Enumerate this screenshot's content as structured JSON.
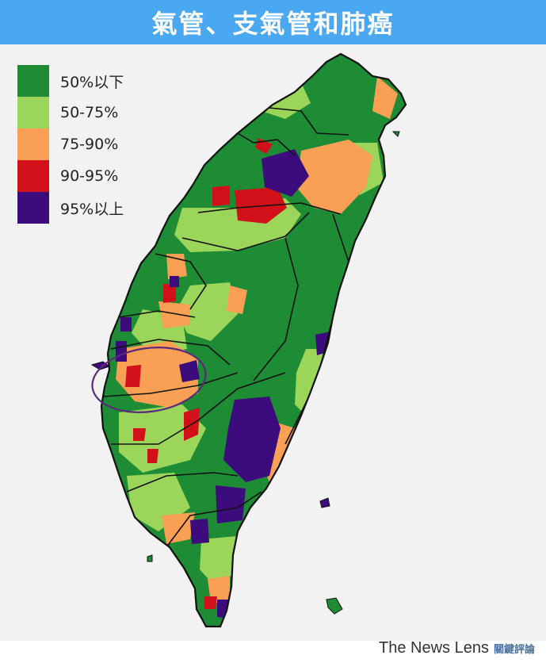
{
  "title": "氣管、支氣管和肺癌",
  "legend": [
    {
      "label": "50%以下",
      "color": "#1e8c34"
    },
    {
      "label": "50-75%",
      "color": "#9bd65a"
    },
    {
      "label": "75-90%",
      "color": "#f9a055"
    },
    {
      "label": "90-95%",
      "color": "#d1101a"
    },
    {
      "label": "95%以上",
      "color": "#3c0c7c"
    }
  ],
  "colors": {
    "header": "#4aa8f0",
    "background": "#f2f2f2",
    "border": "#111111",
    "highlight_ring": "#5a2a78"
  },
  "footer": {
    "brand": "The News Lens",
    "brand_cn": "關鍵評論"
  }
}
